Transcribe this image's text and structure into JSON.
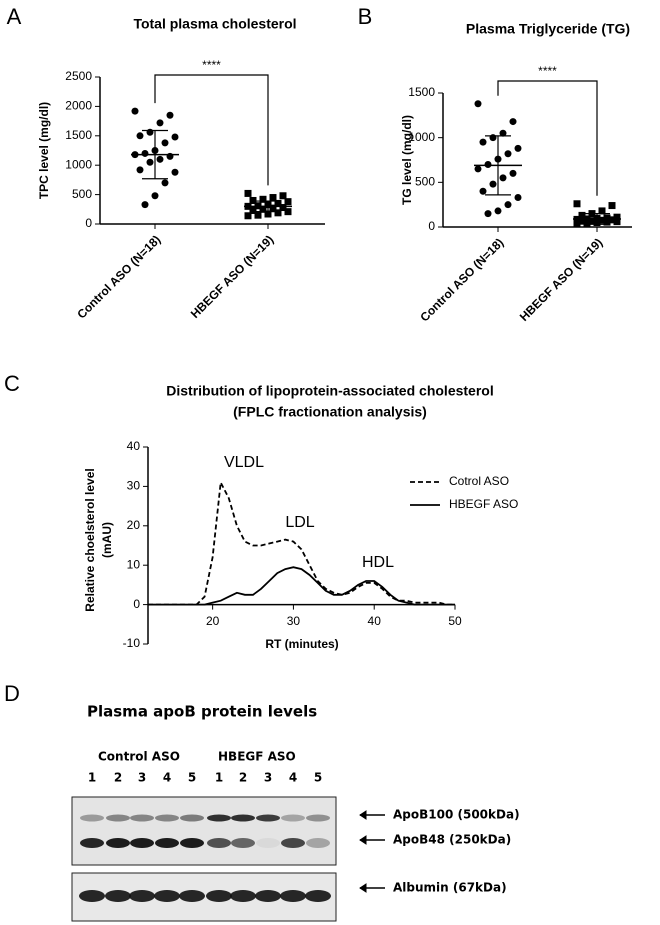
{
  "chart_data": [
    {
      "type": "dotplot",
      "panel": "A",
      "title": "Total plasma cholesterol",
      "ylabel": "TPC level (mg/dl)",
      "categories": [
        "Control ASO (N=18)",
        "HBEGF ASO (N=19)"
      ],
      "values": [
        [
          1920,
          1850,
          1720,
          1560,
          1500,
          1480,
          1380,
          1250,
          1200,
          1180,
          1150,
          1100,
          1050,
          920,
          880,
          700,
          480,
          330
        ],
        [
          520,
          480,
          450,
          420,
          400,
          380,
          350,
          330,
          310,
          300,
          280,
          270,
          250,
          230,
          210,
          190,
          170,
          150,
          140
        ]
      ],
      "mean": [
        1180,
        300
      ],
      "sd": [
        410,
        90
      ],
      "markers": [
        "circle",
        "square"
      ],
      "color": "#000000",
      "annotation": "****",
      "ylim": [
        0,
        2500
      ],
      "yticks": [
        0,
        500,
        1000,
        1500,
        2000,
        2500
      ]
    },
    {
      "type": "dotplot",
      "panel": "B",
      "title": "Plasma Triglyceride (TG)",
      "ylabel": "TG level (mg/dl)",
      "categories": [
        "Control ASO (N=18)",
        "HBEGF ASO (N=19)"
      ],
      "values": [
        [
          1380,
          1180,
          1050,
          1000,
          950,
          880,
          820,
          760,
          700,
          650,
          600,
          550,
          480,
          400,
          330,
          250,
          180,
          150
        ],
        [
          260,
          240,
          180,
          150,
          130,
          110,
          100,
          95,
          90,
          85,
          80,
          75,
          70,
          65,
          60,
          55,
          50,
          45,
          40
        ]
      ],
      "mean": [
        690,
        90
      ],
      "sd": [
        330,
        60
      ],
      "markers": [
        "circle",
        "square"
      ],
      "color": "#000000",
      "annotation": "****",
      "ylim": [
        0,
        1500
      ],
      "yticks": [
        0,
        500,
        1000,
        1500
      ]
    },
    {
      "type": "line",
      "panel": "C",
      "title": [
        "Distribution of lipoprotein-associated cholesterol",
        "(FPLC fractionation analysis)"
      ],
      "xlabel": "RT (minutes)",
      "ylabel": [
        "Relative choelsterol level",
        "(mAU)"
      ],
      "x": [
        12,
        13,
        14,
        15,
        16,
        17,
        18,
        19,
        20,
        21,
        22,
        23,
        24,
        25,
        26,
        27,
        28,
        29,
        30,
        31,
        32,
        33,
        34,
        35,
        36,
        37,
        38,
        39,
        40,
        41,
        42,
        43,
        44,
        45,
        46,
        47,
        48,
        49,
        50
      ],
      "series": [
        {
          "name": "Cotrol ASO",
          "color": "#000000",
          "dash": true,
          "values": [
            0,
            0,
            0,
            0,
            0,
            0,
            0,
            2,
            12,
            31,
            27,
            20,
            16,
            15,
            15,
            15.5,
            16,
            16.5,
            16,
            14,
            10,
            6,
            4,
            3,
            2.5,
            3,
            4.5,
            5.5,
            5.5,
            4,
            2,
            1,
            1,
            0.5,
            0.5,
            0.5,
            0.5,
            0,
            0
          ]
        },
        {
          "name": "HBEGF ASO",
          "color": "#000000",
          "dash": false,
          "values": [
            0,
            0,
            0,
            0,
            0,
            0,
            0,
            0,
            0.5,
            1,
            2,
            3,
            2.5,
            2.5,
            4,
            6,
            8,
            9,
            9.5,
            9,
            7.5,
            5.5,
            3.5,
            2.5,
            2.5,
            3.5,
            5,
            6,
            6,
            4.5,
            2.5,
            1,
            0.5,
            0,
            0,
            0,
            0,
            0,
            0
          ]
        }
      ],
      "annotations": [
        "VLDL",
        "LDL",
        "HDL"
      ],
      "xlim": [
        12,
        50
      ],
      "xticks": [
        20,
        30,
        40,
        50
      ],
      "ylim": [
        -10,
        40
      ],
      "yticks": [
        -10,
        0,
        10,
        20,
        30,
        40
      ],
      "legend": "upper right"
    }
  ],
  "blot": {
    "panel": "D",
    "title": "Plasma apoB protein levels",
    "groups": [
      "Control ASO",
      "HBEGF ASO"
    ],
    "lanes": [
      1,
      2,
      3,
      4,
      5,
      1,
      2,
      3,
      4,
      5
    ],
    "bands": [
      "ApoB100 (500kDa)",
      "ApoB48 (250kDa)",
      "Albumin (67kDa)"
    ]
  }
}
